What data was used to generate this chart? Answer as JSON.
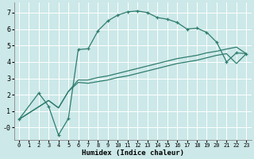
{
  "xlabel": "Humidex (Indice chaleur)",
  "background_color": "#cce8e8",
  "grid_color": "#ffffff",
  "line_color": "#2e7d6e",
  "xlim": [
    -0.5,
    23.5
  ],
  "ylim": [
    -0.75,
    7.6
  ],
  "xtick_labels": [
    "0",
    "1",
    "2",
    "3",
    "4",
    "5",
    "6",
    "7",
    "8",
    "9",
    "10",
    "11",
    "12",
    "13",
    "14",
    "15",
    "16",
    "17",
    "18",
    "19",
    "20",
    "21",
    "22",
    "23"
  ],
  "ytick_labels": [
    "-0",
    "1",
    "2",
    "3",
    "4",
    "5",
    "6",
    "7"
  ],
  "ytick_vals": [
    0,
    1,
    2,
    3,
    4,
    5,
    6,
    7
  ],
  "series1_x": [
    0,
    2,
    3,
    4,
    5,
    6,
    7,
    8,
    9,
    10,
    11,
    12,
    13,
    14,
    15,
    16,
    17,
    18,
    19,
    20,
    21,
    22,
    23
  ],
  "series1_y": [
    0.5,
    2.1,
    1.3,
    -0.45,
    0.55,
    4.75,
    4.8,
    5.9,
    6.5,
    6.85,
    7.05,
    7.1,
    7.0,
    6.7,
    6.6,
    6.4,
    6.0,
    6.05,
    5.8,
    5.2,
    4.0,
    4.55,
    4.5
  ],
  "series2_x": [
    0,
    3,
    4,
    5,
    6,
    7,
    8,
    9,
    10,
    11,
    12,
    13,
    14,
    15,
    16,
    17,
    18,
    19,
    20,
    21,
    22,
    23
  ],
  "series2_y": [
    0.5,
    1.65,
    1.2,
    2.2,
    2.9,
    2.9,
    3.05,
    3.15,
    3.3,
    3.45,
    3.6,
    3.75,
    3.9,
    4.05,
    4.2,
    4.3,
    4.4,
    4.55,
    4.65,
    4.78,
    4.9,
    4.5
  ],
  "series3_x": [
    0,
    3,
    4,
    5,
    6,
    7,
    8,
    9,
    10,
    11,
    12,
    13,
    14,
    15,
    16,
    17,
    18,
    19,
    20,
    21,
    22,
    23
  ],
  "series3_y": [
    0.5,
    1.65,
    1.2,
    2.2,
    2.75,
    2.7,
    2.8,
    2.9,
    3.05,
    3.15,
    3.3,
    3.45,
    3.6,
    3.75,
    3.9,
    4.0,
    4.1,
    4.25,
    4.4,
    4.5,
    3.9,
    4.5
  ]
}
